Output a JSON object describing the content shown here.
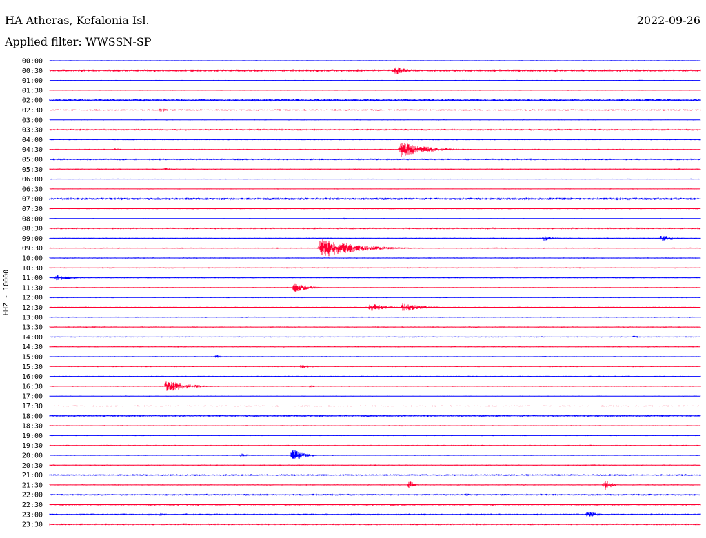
{
  "header": {
    "station": "HA Atheras, Kefalonia Isl.",
    "date": "2022-09-26",
    "filter": "Applied filter: WWSSN-SP"
  },
  "chart_data": {
    "type": "line",
    "ylabel": "HHZ - 10000",
    "colors": {
      "even": "#0000ff",
      "odd": "#ff0033"
    },
    "rows": [
      "00:00",
      "00:30",
      "01:00",
      "01:30",
      "02:00",
      "02:30",
      "03:00",
      "03:30",
      "04:00",
      "04:30",
      "05:00",
      "05:30",
      "06:00",
      "06:30",
      "07:00",
      "07:30",
      "08:00",
      "08:30",
      "09:00",
      "09:30",
      "10:00",
      "10:30",
      "11:00",
      "11:30",
      "12:00",
      "12:30",
      "13:00",
      "13:30",
      "14:00",
      "14:30",
      "15:00",
      "15:30",
      "16:00",
      "16:30",
      "17:00",
      "17:30",
      "18:00",
      "18:30",
      "19:00",
      "19:30",
      "20:00",
      "20:30",
      "21:00",
      "21:30",
      "22:00",
      "22:30",
      "23:00",
      "23:30"
    ],
    "x_range_minutes": [
      0,
      30
    ],
    "noise": [
      1,
      2,
      0.8,
      0.8,
      2,
      1.2,
      0.8,
      1.5,
      1,
      1,
      1.5,
      1,
      0.8,
      0.8,
      2,
      1,
      0.8,
      1.5,
      1,
      1,
      1,
      1,
      1,
      1,
      1,
      1,
      1,
      1,
      1,
      1,
      1,
      1,
      1,
      1,
      0.8,
      0.8,
      1.5,
      1,
      0.8,
      1,
      1,
      1,
      1.5,
      1,
      1.5,
      1.5,
      1.5,
      1.5
    ],
    "events": [
      {
        "row": 1,
        "t": 15.9,
        "amp": 6,
        "dur": 0.8
      },
      {
        "row": 5,
        "t": 5.1,
        "amp": 4,
        "dur": 0.3
      },
      {
        "row": 9,
        "t": 3.0,
        "amp": 2,
        "dur": 0.4
      },
      {
        "row": 9,
        "t": 16.2,
        "amp": 11,
        "dur": 1.2
      },
      {
        "row": 11,
        "t": 5.3,
        "amp": 2,
        "dur": 0.6
      },
      {
        "row": 16,
        "t": 13.6,
        "amp": 1.5,
        "dur": 0.3
      },
      {
        "row": 18,
        "t": 22.8,
        "amp": 4,
        "dur": 0.5
      },
      {
        "row": 18,
        "t": 28.2,
        "amp": 5,
        "dur": 0.6
      },
      {
        "row": 19,
        "t": 12.5,
        "amp": 15,
        "dur": 1.5
      },
      {
        "row": 22,
        "t": 0.3,
        "amp": 5,
        "dur": 0.7
      },
      {
        "row": 23,
        "t": 11.3,
        "amp": 7,
        "dur": 0.6
      },
      {
        "row": 25,
        "t": 14.8,
        "amp": 6,
        "dur": 0.7
      },
      {
        "row": 25,
        "t": 16.3,
        "amp": 7,
        "dur": 0.8
      },
      {
        "row": 28,
        "t": 26.9,
        "amp": 2,
        "dur": 0.5
      },
      {
        "row": 30,
        "t": 7.7,
        "amp": 3,
        "dur": 0.2
      },
      {
        "row": 31,
        "t": 11.6,
        "amp": 3,
        "dur": 0.6
      },
      {
        "row": 33,
        "t": 5.4,
        "amp": 9,
        "dur": 0.9
      },
      {
        "row": 33,
        "t": 12.0,
        "amp": 2,
        "dur": 0.4
      },
      {
        "row": 40,
        "t": 8.8,
        "amp": 3,
        "dur": 0.4
      },
      {
        "row": 40,
        "t": 11.2,
        "amp": 10,
        "dur": 0.5
      },
      {
        "row": 43,
        "t": 16.6,
        "amp": 7,
        "dur": 0.2
      },
      {
        "row": 43,
        "t": 25.6,
        "amp": 8,
        "dur": 0.3
      },
      {
        "row": 44,
        "t": 19.2,
        "amp": 2,
        "dur": 0.5
      },
      {
        "row": 46,
        "t": 5.1,
        "amp": 2,
        "dur": 0.4
      },
      {
        "row": 46,
        "t": 24.8,
        "amp": 6,
        "dur": 0.4
      }
    ]
  }
}
